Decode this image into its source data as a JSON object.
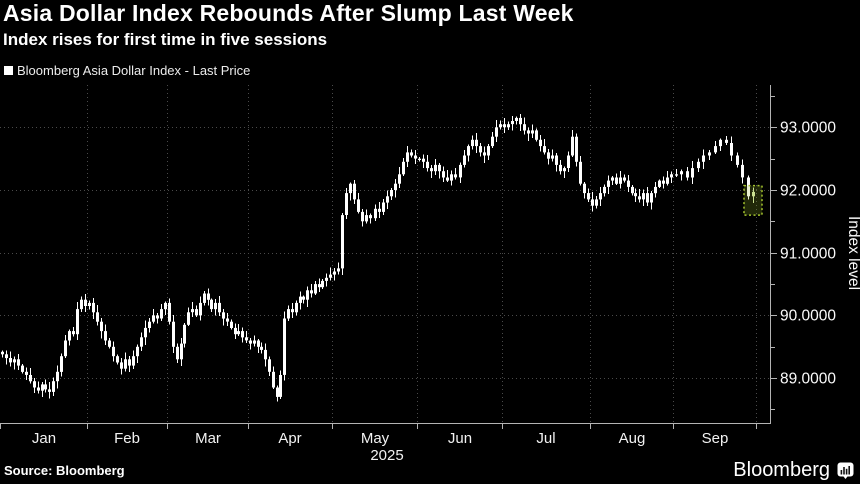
{
  "header": {
    "title": "Asia Dollar Index Rebounds After Slump Last Week",
    "subtitle": "Index rises for first time in five sessions",
    "legend_label": "Bloomberg Asia Dollar Index - Last Price"
  },
  "footer": {
    "source": "Source: Bloomberg",
    "brand": "Bloomberg"
  },
  "colors": {
    "background": "#000000",
    "text": "#f2f2f2",
    "candle": "#ffffff",
    "grid": "#4a4a4a",
    "axis": "#b3b3b3",
    "highlight": "#a5c42e",
    "highlight_fill": "rgba(150,180,40,0.22)",
    "highlight_candle": "#d9ecae"
  },
  "chart_data": {
    "type": "candlestick",
    "title": "Asia Dollar Index Rebounds After Slump Last Week",
    "subtitle": "Index rises for first time in five sessions",
    "series_name": "Bloomberg Asia Dollar Index - Last Price",
    "ylabel": "Index level",
    "ylim": [
      88.3,
      93.7
    ],
    "grid": true,
    "legend_position": "top-left",
    "year": "2025",
    "x_unit": "daily sessions Jan-Sep 2025",
    "y_axis": {
      "title": "Index level",
      "major": [
        {
          "value": 89,
          "label": "89.0000"
        },
        {
          "value": 90,
          "label": "90.0000"
        },
        {
          "value": 91,
          "label": "91.0000"
        },
        {
          "value": 92,
          "label": "92.0000"
        },
        {
          "value": 93,
          "label": "93.0000"
        }
      ],
      "minor": [
        88.5,
        89.5,
        90.5,
        91.5,
        92.5,
        93.5
      ]
    },
    "months": [
      {
        "label": "Jan",
        "days": 22
      },
      {
        "label": "Feb",
        "days": 20
      },
      {
        "label": "Mar",
        "days": 21
      },
      {
        "label": "Apr",
        "days": 22
      },
      {
        "label": "May",
        "days": 21
      },
      {
        "label": "Jun",
        "days": 21
      },
      {
        "label": "Jul",
        "days": 22
      },
      {
        "label": "Aug",
        "days": 21
      },
      {
        "label": "Sep",
        "days": 15
      }
    ],
    "first_open": 89.42,
    "closes": [
      89.38,
      89.32,
      89.25,
      89.3,
      89.2,
      89.1,
      89.05,
      88.95,
      88.85,
      88.8,
      88.9,
      88.82,
      88.78,
      88.95,
      89.1,
      89.35,
      89.6,
      89.75,
      89.7,
      90.1,
      90.25,
      90.15,
      90.2,
      90.05,
      89.9,
      89.75,
      89.6,
      89.5,
      89.35,
      89.25,
      89.15,
      89.3,
      89.2,
      89.35,
      89.5,
      89.65,
      89.8,
      89.9,
      90.0,
      89.95,
      90.1,
      90.2,
      89.9,
      89.5,
      89.3,
      89.55,
      89.85,
      90.05,
      90.1,
      90.0,
      90.2,
      90.35,
      90.25,
      90.1,
      90.2,
      90.05,
      89.95,
      89.9,
      89.8,
      89.7,
      89.75,
      89.65,
      89.6,
      89.55,
      89.6,
      89.5,
      89.45,
      89.3,
      89.1,
      88.85,
      88.7,
      89.05,
      89.95,
      90.1,
      90.05,
      90.2,
      90.3,
      90.25,
      90.4,
      90.35,
      90.5,
      90.45,
      90.55,
      90.6,
      90.65,
      90.7,
      90.75,
      91.6,
      91.95,
      92.1,
      91.85,
      91.65,
      91.5,
      91.6,
      91.55,
      91.7,
      91.65,
      91.8,
      91.9,
      92.0,
      92.1,
      92.25,
      92.45,
      92.6,
      92.55,
      92.5,
      92.5,
      92.45,
      92.35,
      92.3,
      92.4,
      92.3,
      92.2,
      92.15,
      92.25,
      92.2,
      92.4,
      92.55,
      92.7,
      92.8,
      92.7,
      92.6,
      92.55,
      92.7,
      92.85,
      93.0,
      93.05,
      93.0,
      93.05,
      93.1,
      93.15,
      93.05,
      92.95,
      92.9,
      92.95,
      92.8,
      92.7,
      92.6,
      92.5,
      92.55,
      92.4,
      92.3,
      92.35,
      92.55,
      92.85,
      92.45,
      92.1,
      91.95,
      91.85,
      91.75,
      91.85,
      91.95,
      92.05,
      92.15,
      92.2,
      92.1,
      92.2,
      92.15,
      92.05,
      91.95,
      91.9,
      91.85,
      91.95,
      91.8,
      91.95,
      92.05,
      92.15,
      92.1,
      92.2,
      92.25,
      92.25,
      92.3,
      92.2,
      92.35,
      92.45,
      92.55,
      92.6,
      92.7,
      92.8,
      92.75,
      92.55,
      92.4,
      92.2,
      91.9,
      91.97
    ],
    "last_price": 91.97,
    "highlight_last": true
  }
}
